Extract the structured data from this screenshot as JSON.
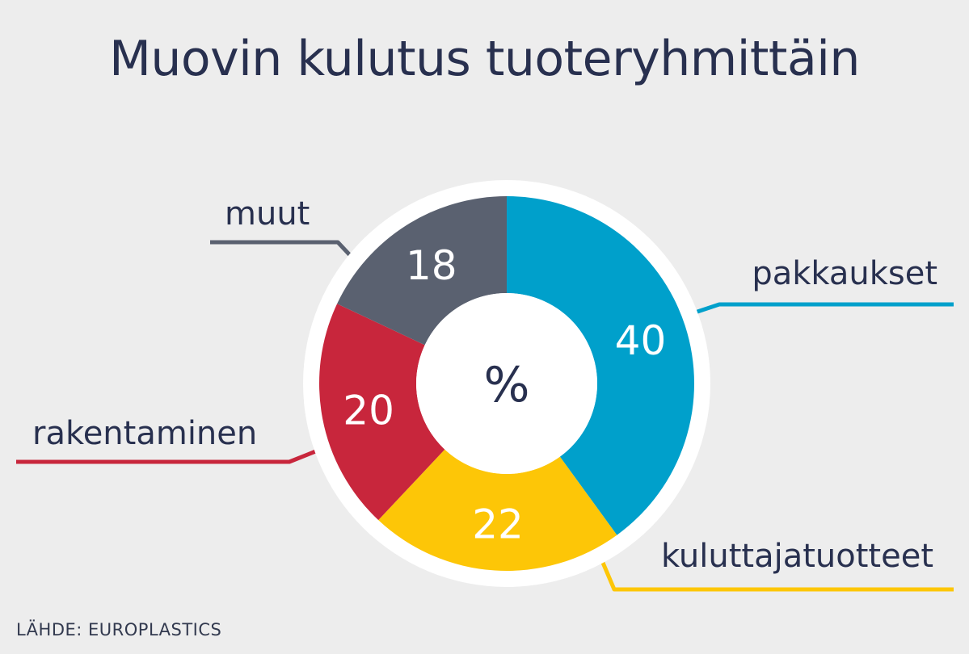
{
  "title": "Muovin kulutus tuoteryhmittäin",
  "source": "LÄHDE: EUROPLASTICS",
  "chart_data": {
    "type": "pie",
    "style": "donut",
    "center_label": "%",
    "slices": [
      {
        "label": "pakkaukset",
        "value": 40,
        "color": "#00a0cb"
      },
      {
        "label": "kuluttajatuotteet",
        "value": 22,
        "color": "#fdc607"
      },
      {
        "label": "rakentaminen",
        "value": 20,
        "color": "#c8263c"
      },
      {
        "label": "muut",
        "value": 18,
        "color": "#5a6170"
      }
    ],
    "colors": {
      "background": "#ededed",
      "ring": "#ffffff",
      "text_dark": "#28304f",
      "text_light": "#ffffff"
    }
  }
}
